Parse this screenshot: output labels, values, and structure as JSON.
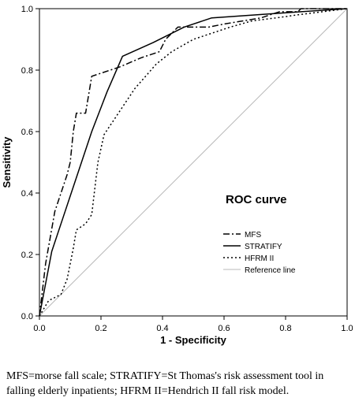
{
  "chart_data": {
    "type": "line",
    "title": "ROC curve",
    "xlabel": "1 - Specificity",
    "ylabel": "Sensitivity",
    "xlim": [
      0,
      1
    ],
    "ylim": [
      0,
      1
    ],
    "xticks": [
      "0.0",
      "0.2",
      "0.4",
      "0.6",
      "0.8",
      "1.0"
    ],
    "yticks": [
      "0.0",
      "0.2",
      "0.4",
      "0.6",
      "0.8",
      "1.0"
    ],
    "grid": false,
    "legend_position": "lower-right",
    "series": [
      {
        "name": "MFS",
        "style": "dash-dot",
        "color": "#000000",
        "points": [
          [
            0,
            0
          ],
          [
            0.02,
            0.17
          ],
          [
            0.05,
            0.34
          ],
          [
            0.07,
            0.4
          ],
          [
            0.09,
            0.46
          ],
          [
            0.1,
            0.5
          ],
          [
            0.11,
            0.6
          ],
          [
            0.12,
            0.66
          ],
          [
            0.15,
            0.66
          ],
          [
            0.17,
            0.78
          ],
          [
            0.26,
            0.81
          ],
          [
            0.33,
            0.84
          ],
          [
            0.39,
            0.86
          ],
          [
            0.41,
            0.9
          ],
          [
            0.45,
            0.94
          ],
          [
            0.55,
            0.94
          ],
          [
            0.6,
            0.95
          ],
          [
            0.66,
            0.96
          ],
          [
            0.72,
            0.97
          ],
          [
            0.78,
            0.99
          ],
          [
            0.84,
            0.99
          ],
          [
            0.85,
            1.0
          ],
          [
            1,
            1
          ]
        ]
      },
      {
        "name": "STRATIFY",
        "style": "solid",
        "color": "#000000",
        "points": [
          [
            0,
            0
          ],
          [
            0.04,
            0.21
          ],
          [
            0.08,
            0.33
          ],
          [
            0.12,
            0.45
          ],
          [
            0.17,
            0.6
          ],
          [
            0.22,
            0.73
          ],
          [
            0.27,
            0.845
          ],
          [
            0.37,
            0.89
          ],
          [
            0.47,
            0.94
          ],
          [
            0.56,
            0.97
          ],
          [
            0.85,
            0.99
          ],
          [
            1,
            1
          ]
        ]
      },
      {
        "name": "HFRM II",
        "style": "dotted",
        "color": "#000000",
        "points": [
          [
            0,
            0
          ],
          [
            0.03,
            0.05
          ],
          [
            0.07,
            0.07
          ],
          [
            0.09,
            0.12
          ],
          [
            0.11,
            0.22
          ],
          [
            0.12,
            0.28
          ],
          [
            0.15,
            0.3
          ],
          [
            0.17,
            0.33
          ],
          [
            0.19,
            0.5
          ],
          [
            0.21,
            0.59
          ],
          [
            0.25,
            0.65
          ],
          [
            0.31,
            0.74
          ],
          [
            0.38,
            0.82
          ],
          [
            0.43,
            0.86
          ],
          [
            0.5,
            0.9
          ],
          [
            0.56,
            0.92
          ],
          [
            0.62,
            0.94
          ],
          [
            0.69,
            0.96
          ],
          [
            0.77,
            0.97
          ],
          [
            0.84,
            0.98
          ],
          [
            0.92,
            0.99
          ],
          [
            1,
            1
          ]
        ]
      },
      {
        "name": "Reference line",
        "style": "solid",
        "color": "#b9b9b9",
        "points": [
          [
            0,
            0
          ],
          [
            1,
            1
          ]
        ]
      }
    ]
  },
  "caption": "MFS=morse fall scale; STRATIFY=St Thomas's risk assessment tool in falling elderly inpatients; HFRM II=Hendrich II fall risk model."
}
